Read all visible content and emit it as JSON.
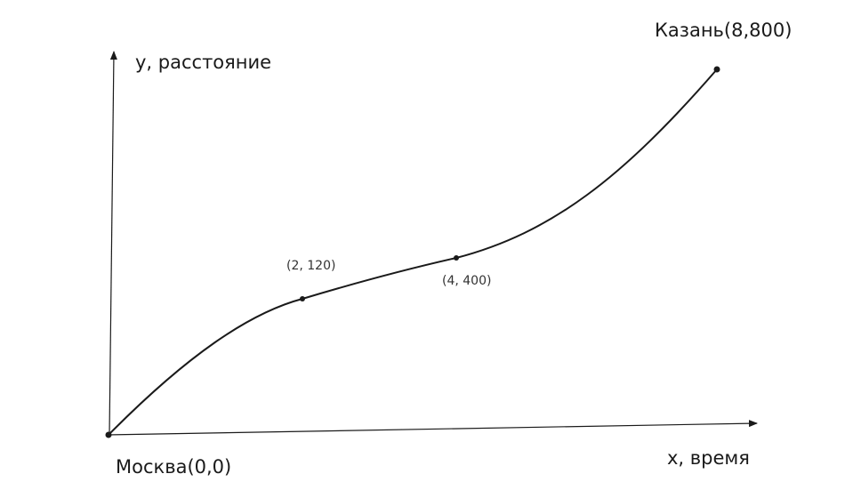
{
  "axes": {
    "y_label": "y, расстояние",
    "x_label": "x, время"
  },
  "points": [
    {
      "label": "Москва(0,0)",
      "x": 0,
      "y": 0
    },
    {
      "label": "(2, 120)",
      "x": 2,
      "y": 120
    },
    {
      "label": "(4, 400)",
      "x": 4,
      "y": 400
    },
    {
      "label": "Казань(8,800)",
      "x": 8,
      "y": 800
    }
  ],
  "colors": {
    "stroke": "#1a1a1a"
  }
}
